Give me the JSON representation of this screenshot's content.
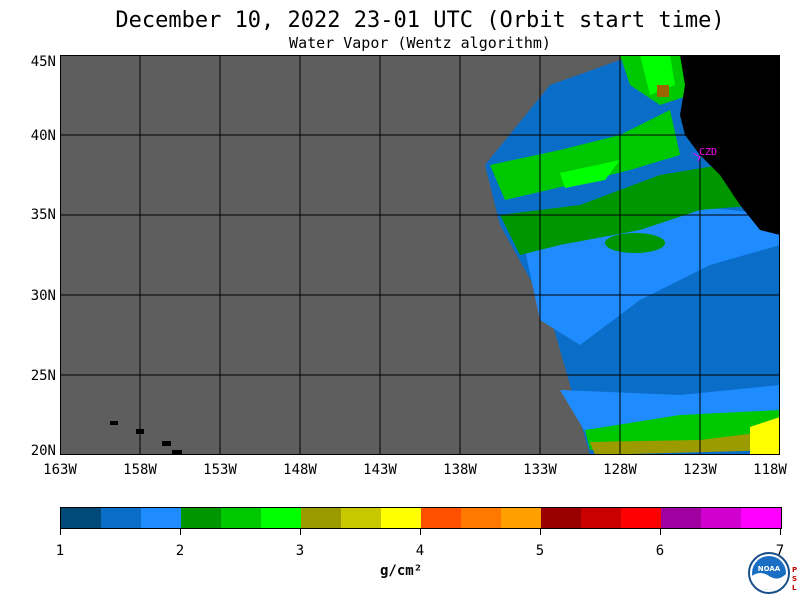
{
  "title": "December 10, 2022  23-01 UTC  (Orbit start time)",
  "subtitle": "Water Vapor (Wentz algorithm)",
  "lat_labels": [
    "45N",
    "40N",
    "35N",
    "30N",
    "25N",
    "20N"
  ],
  "lon_labels": [
    "163W",
    "158W",
    "153W",
    "148W",
    "143W",
    "138W",
    "133W",
    "128W",
    "123W",
    "118W"
  ],
  "station": {
    "label": "CZD",
    "color": "#ff00ff"
  },
  "colorbar": {
    "labels": [
      "1",
      "2",
      "3",
      "4",
      "5",
      "6",
      "7"
    ],
    "units": "g/cm²",
    "colors": [
      "#004a7a",
      "#0a6ec8",
      "#1e8cff",
      "#009600",
      "#00c800",
      "#00ff00",
      "#9b9b00",
      "#c8c800",
      "#ffff00",
      "#ff5000",
      "#ff7800",
      "#ffa000",
      "#9b0000",
      "#c80000",
      "#ff0000",
      "#a000a0",
      "#d000d0",
      "#ff00ff"
    ]
  },
  "colors": {
    "no_data": "#5e5e5e",
    "land": "#000000",
    "grid": "#000000"
  },
  "logo": {
    "name": "NOAA",
    "side_text": "PSL"
  }
}
